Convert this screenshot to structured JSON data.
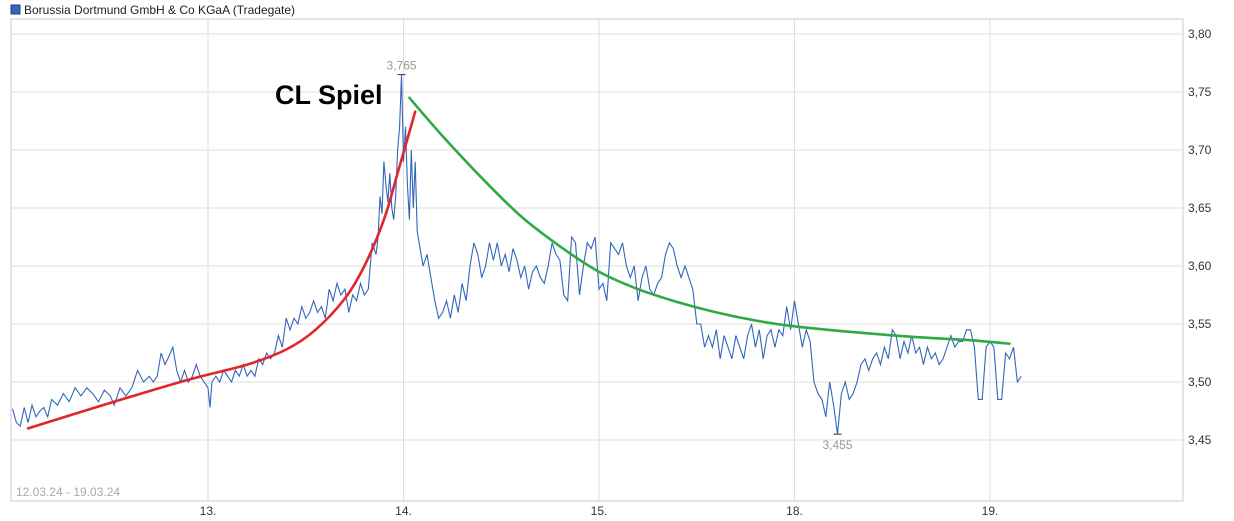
{
  "chart_data": {
    "type": "line",
    "title": "Borussia Dortmund GmbH & Co KGaA (Tradegate)",
    "date_range": "12.03.24 - 19.03.24",
    "x_ticks": [
      "13.",
      "14.",
      "15.",
      "18.",
      "19."
    ],
    "y_ticks": [
      "3,80",
      "3,75",
      "3,70",
      "3,65",
      "3,60",
      "3,55",
      "3,50",
      "3,45"
    ],
    "ylim": [
      3.4,
      3.82
    ],
    "grid": true,
    "legend_position": "top-left",
    "colors": {
      "price": "#3366bb",
      "trend_up": "#e0262b",
      "trend_down": "#2eaa44",
      "grid": "#dddddd"
    },
    "high_label": "3,765",
    "low_label": "3,455",
    "high_value": 3.765,
    "low_value": 3.455,
    "annotation": "CL Spiel",
    "series": [
      {
        "name": "Borussia Dortmund GmbH & Co KGaA (Tradegate)",
        "points": [
          [
            0.0,
            3.477
          ],
          [
            0.02,
            3.465
          ],
          [
            0.04,
            3.462
          ],
          [
            0.06,
            3.478
          ],
          [
            0.08,
            3.465
          ],
          [
            0.1,
            3.48
          ],
          [
            0.12,
            3.47
          ],
          [
            0.14,
            3.475
          ],
          [
            0.16,
            3.478
          ],
          [
            0.18,
            3.47
          ],
          [
            0.2,
            3.485
          ],
          [
            0.23,
            3.48
          ],
          [
            0.26,
            3.49
          ],
          [
            0.29,
            3.483
          ],
          [
            0.32,
            3.495
          ],
          [
            0.35,
            3.488
          ],
          [
            0.38,
            3.495
          ],
          [
            0.41,
            3.49
          ],
          [
            0.44,
            3.483
          ],
          [
            0.47,
            3.493
          ],
          [
            0.5,
            3.488
          ],
          [
            0.52,
            3.48
          ],
          [
            0.55,
            3.495
          ],
          [
            0.58,
            3.488
          ],
          [
            0.61,
            3.495
          ],
          [
            0.64,
            3.51
          ],
          [
            0.67,
            3.5
          ],
          [
            0.7,
            3.505
          ],
          [
            0.72,
            3.5
          ],
          [
            0.74,
            3.505
          ],
          [
            0.76,
            3.525
          ],
          [
            0.78,
            3.515
          ],
          [
            0.8,
            3.522
          ],
          [
            0.82,
            3.53
          ],
          [
            0.84,
            3.51
          ],
          [
            0.86,
            3.5
          ],
          [
            0.88,
            3.51
          ],
          [
            0.9,
            3.5
          ],
          [
            0.92,
            3.505
          ],
          [
            0.94,
            3.515
          ],
          [
            0.96,
            3.505
          ],
          [
            0.98,
            3.5
          ],
          [
            1.0,
            3.495
          ],
          [
            1.01,
            3.478
          ],
          [
            1.02,
            3.5
          ],
          [
            1.04,
            3.505
          ],
          [
            1.06,
            3.5
          ],
          [
            1.08,
            3.51
          ],
          [
            1.1,
            3.505
          ],
          [
            1.12,
            3.5
          ],
          [
            1.14,
            3.51
          ],
          [
            1.16,
            3.505
          ],
          [
            1.18,
            3.515
          ],
          [
            1.2,
            3.505
          ],
          [
            1.22,
            3.51
          ],
          [
            1.24,
            3.505
          ],
          [
            1.26,
            3.52
          ],
          [
            1.28,
            3.515
          ],
          [
            1.3,
            3.525
          ],
          [
            1.32,
            3.52
          ],
          [
            1.34,
            3.525
          ],
          [
            1.36,
            3.54
          ],
          [
            1.38,
            3.53
          ],
          [
            1.4,
            3.555
          ],
          [
            1.42,
            3.545
          ],
          [
            1.44,
            3.555
          ],
          [
            1.46,
            3.55
          ],
          [
            1.48,
            3.565
          ],
          [
            1.5,
            3.555
          ],
          [
            1.52,
            3.56
          ],
          [
            1.54,
            3.57
          ],
          [
            1.56,
            3.56
          ],
          [
            1.58,
            3.565
          ],
          [
            1.6,
            3.555
          ],
          [
            1.62,
            3.58
          ],
          [
            1.64,
            3.57
          ],
          [
            1.66,
            3.585
          ],
          [
            1.68,
            3.575
          ],
          [
            1.7,
            3.58
          ],
          [
            1.72,
            3.56
          ],
          [
            1.74,
            3.575
          ],
          [
            1.76,
            3.57
          ],
          [
            1.78,
            3.585
          ],
          [
            1.8,
            3.575
          ],
          [
            1.82,
            3.58
          ],
          [
            1.84,
            3.62
          ],
          [
            1.86,
            3.61
          ],
          [
            1.87,
            3.625
          ],
          [
            1.88,
            3.66
          ],
          [
            1.89,
            3.645
          ],
          [
            1.9,
            3.69
          ],
          [
            1.91,
            3.67
          ],
          [
            1.92,
            3.655
          ],
          [
            1.93,
            3.68
          ],
          [
            1.94,
            3.65
          ],
          [
            1.95,
            3.64
          ],
          [
            1.96,
            3.66
          ],
          [
            1.97,
            3.7
          ],
          [
            1.98,
            3.72
          ],
          [
            1.99,
            3.765
          ],
          [
            2.0,
            3.69
          ],
          [
            2.01,
            3.72
          ],
          [
            2.02,
            3.67
          ],
          [
            2.03,
            3.64
          ],
          [
            2.04,
            3.7
          ],
          [
            2.05,
            3.65
          ],
          [
            2.06,
            3.69
          ],
          [
            2.07,
            3.63
          ],
          [
            2.08,
            3.62
          ],
          [
            2.1,
            3.6
          ],
          [
            2.12,
            3.61
          ],
          [
            2.14,
            3.59
          ],
          [
            2.16,
            3.57
          ],
          [
            2.18,
            3.555
          ],
          [
            2.2,
            3.56
          ],
          [
            2.22,
            3.57
          ],
          [
            2.24,
            3.555
          ],
          [
            2.26,
            3.575
          ],
          [
            2.28,
            3.56
          ],
          [
            2.3,
            3.585
          ],
          [
            2.32,
            3.57
          ],
          [
            2.34,
            3.6
          ],
          [
            2.36,
            3.62
          ],
          [
            2.38,
            3.61
          ],
          [
            2.4,
            3.59
          ],
          [
            2.42,
            3.6
          ],
          [
            2.44,
            3.62
          ],
          [
            2.46,
            3.605
          ],
          [
            2.48,
            3.62
          ],
          [
            2.5,
            3.6
          ],
          [
            2.52,
            3.61
          ],
          [
            2.54,
            3.595
          ],
          [
            2.56,
            3.615
          ],
          [
            2.58,
            3.605
          ],
          [
            2.6,
            3.59
          ],
          [
            2.62,
            3.6
          ],
          [
            2.64,
            3.58
          ],
          [
            2.66,
            3.595
          ],
          [
            2.68,
            3.6
          ],
          [
            2.7,
            3.59
          ],
          [
            2.72,
            3.585
          ],
          [
            2.74,
            3.6
          ],
          [
            2.76,
            3.62
          ],
          [
            2.78,
            3.61
          ],
          [
            2.8,
            3.605
          ],
          [
            2.82,
            3.575
          ],
          [
            2.84,
            3.57
          ],
          [
            2.86,
            3.625
          ],
          [
            2.88,
            3.62
          ],
          [
            2.9,
            3.575
          ],
          [
            2.92,
            3.6
          ],
          [
            2.94,
            3.62
          ],
          [
            2.96,
            3.615
          ],
          [
            2.98,
            3.625
          ],
          [
            3.0,
            3.58
          ],
          [
            3.02,
            3.585
          ],
          [
            3.04,
            3.57
          ],
          [
            3.06,
            3.62
          ],
          [
            3.08,
            3.615
          ],
          [
            3.1,
            3.61
          ],
          [
            3.12,
            3.62
          ],
          [
            3.14,
            3.6
          ],
          [
            3.16,
            3.59
          ],
          [
            3.18,
            3.6
          ],
          [
            3.2,
            3.57
          ],
          [
            3.22,
            3.59
          ],
          [
            3.24,
            3.6
          ],
          [
            3.26,
            3.58
          ],
          [
            3.28,
            3.575
          ],
          [
            3.3,
            3.585
          ],
          [
            3.32,
            3.59
          ],
          [
            3.34,
            3.61
          ],
          [
            3.36,
            3.62
          ],
          [
            3.38,
            3.615
          ],
          [
            3.4,
            3.6
          ],
          [
            3.42,
            3.59
          ],
          [
            3.44,
            3.6
          ],
          [
            3.46,
            3.59
          ],
          [
            3.48,
            3.58
          ],
          [
            3.5,
            3.55
          ],
          [
            3.52,
            3.55
          ],
          [
            3.54,
            3.53
          ],
          [
            3.56,
            3.54
          ],
          [
            3.58,
            3.53
          ],
          [
            3.6,
            3.545
          ],
          [
            3.62,
            3.52
          ],
          [
            3.64,
            3.54
          ],
          [
            3.66,
            3.53
          ],
          [
            3.68,
            3.52
          ],
          [
            3.7,
            3.54
          ],
          [
            3.72,
            3.53
          ],
          [
            3.74,
            3.52
          ],
          [
            3.76,
            3.54
          ],
          [
            3.78,
            3.55
          ],
          [
            3.8,
            3.53
          ],
          [
            3.82,
            3.545
          ],
          [
            3.84,
            3.52
          ],
          [
            3.86,
            3.54
          ],
          [
            3.88,
            3.545
          ],
          [
            3.9,
            3.53
          ],
          [
            3.92,
            3.545
          ],
          [
            3.94,
            3.54
          ],
          [
            3.96,
            3.565
          ],
          [
            3.98,
            3.545
          ],
          [
            4.0,
            3.57
          ],
          [
            4.02,
            3.55
          ],
          [
            4.04,
            3.53
          ],
          [
            4.06,
            3.545
          ],
          [
            4.08,
            3.535
          ],
          [
            4.1,
            3.5
          ],
          [
            4.12,
            3.49
          ],
          [
            4.14,
            3.485
          ],
          [
            4.16,
            3.47
          ],
          [
            4.18,
            3.5
          ],
          [
            4.2,
            3.48
          ],
          [
            4.22,
            3.455
          ],
          [
            4.24,
            3.49
          ],
          [
            4.26,
            3.5
          ],
          [
            4.28,
            3.485
          ],
          [
            4.3,
            3.49
          ],
          [
            4.32,
            3.5
          ],
          [
            4.34,
            3.515
          ],
          [
            4.36,
            3.52
          ],
          [
            4.38,
            3.51
          ],
          [
            4.4,
            3.52
          ],
          [
            4.42,
            3.525
          ],
          [
            4.44,
            3.515
          ],
          [
            4.46,
            3.53
          ],
          [
            4.48,
            3.52
          ],
          [
            4.5,
            3.545
          ],
          [
            4.52,
            3.54
          ],
          [
            4.54,
            3.52
          ],
          [
            4.56,
            3.535
          ],
          [
            4.58,
            3.525
          ],
          [
            4.6,
            3.54
          ],
          [
            4.62,
            3.525
          ],
          [
            4.64,
            3.53
          ],
          [
            4.66,
            3.515
          ],
          [
            4.68,
            3.53
          ],
          [
            4.7,
            3.52
          ],
          [
            4.72,
            3.525
          ],
          [
            4.74,
            3.515
          ],
          [
            4.76,
            3.52
          ],
          [
            4.78,
            3.53
          ],
          [
            4.8,
            3.54
          ],
          [
            4.82,
            3.53
          ],
          [
            4.84,
            3.535
          ],
          [
            4.86,
            3.535
          ],
          [
            4.88,
            3.545
          ],
          [
            4.9,
            3.545
          ],
          [
            4.92,
            3.53
          ],
          [
            4.94,
            3.485
          ],
          [
            4.96,
            3.485
          ],
          [
            4.98,
            3.53
          ],
          [
            5.0,
            3.535
          ],
          [
            5.02,
            3.53
          ],
          [
            5.04,
            3.485
          ],
          [
            5.06,
            3.485
          ],
          [
            5.08,
            3.525
          ],
          [
            5.1,
            3.52
          ],
          [
            5.12,
            3.53
          ],
          [
            5.14,
            3.5
          ],
          [
            5.16,
            3.505
          ]
        ]
      }
    ],
    "trend_up": {
      "points": [
        [
          0.08,
          3.46
        ],
        [
          0.5,
          3.482
        ],
        [
          0.9,
          3.502
        ],
        [
          1.2,
          3.515
        ],
        [
          1.4,
          3.528
        ],
        [
          1.55,
          3.545
        ],
        [
          1.7,
          3.572
        ],
        [
          1.8,
          3.6
        ],
        [
          1.9,
          3.64
        ],
        [
          1.97,
          3.68
        ],
        [
          2.06,
          3.733
        ]
      ]
    },
    "trend_down": {
      "points": [
        [
          2.03,
          3.745
        ],
        [
          2.2,
          3.712
        ],
        [
          2.4,
          3.676
        ],
        [
          2.6,
          3.643
        ],
        [
          2.8,
          3.617
        ],
        [
          3.0,
          3.595
        ],
        [
          3.2,
          3.58
        ],
        [
          3.4,
          3.569
        ],
        [
          3.6,
          3.56
        ],
        [
          3.8,
          3.553
        ],
        [
          4.0,
          3.548
        ],
        [
          4.3,
          3.543
        ],
        [
          4.6,
          3.539
        ],
        [
          4.9,
          3.536
        ],
        [
          5.1,
          3.533
        ]
      ]
    }
  }
}
